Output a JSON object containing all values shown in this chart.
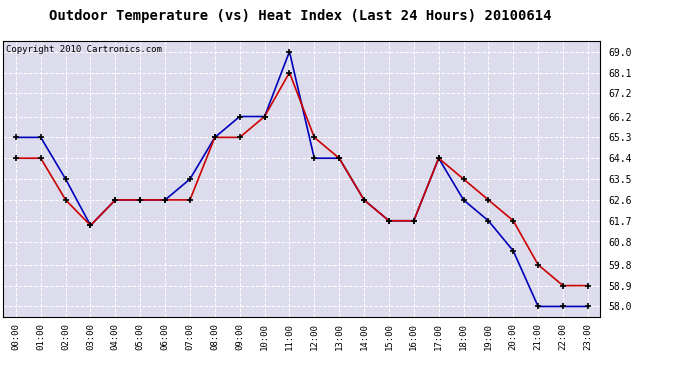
{
  "title": "Outdoor Temperature (vs) Heat Index (Last 24 Hours) 20100614",
  "copyright": "Copyright 2010 Cartronics.com",
  "x_labels": [
    "00:00",
    "01:00",
    "02:00",
    "03:00",
    "04:00",
    "05:00",
    "06:00",
    "07:00",
    "08:00",
    "09:00",
    "10:00",
    "11:00",
    "12:00",
    "13:00",
    "14:00",
    "15:00",
    "16:00",
    "17:00",
    "18:00",
    "19:00",
    "20:00",
    "21:00",
    "22:00",
    "23:00"
  ],
  "blue_data": [
    65.3,
    65.3,
    63.5,
    61.5,
    62.6,
    62.6,
    62.6,
    63.5,
    65.3,
    66.2,
    66.2,
    69.0,
    64.4,
    64.4,
    62.6,
    61.7,
    61.7,
    64.4,
    62.6,
    61.7,
    60.4,
    58.0,
    58.0,
    58.0
  ],
  "red_data": [
    64.4,
    64.4,
    62.6,
    61.5,
    62.6,
    62.6,
    62.6,
    62.6,
    65.3,
    65.3,
    66.2,
    68.1,
    65.3,
    64.4,
    62.6,
    61.7,
    61.7,
    64.4,
    63.5,
    62.6,
    61.7,
    59.8,
    58.9,
    58.9
  ],
  "ylim_min": 57.55,
  "ylim_max": 69.45,
  "yticks": [
    58.0,
    58.9,
    59.8,
    60.8,
    61.7,
    62.6,
    63.5,
    64.4,
    65.3,
    66.2,
    67.2,
    68.1,
    69.0
  ],
  "blue_color": "#0000bb",
  "red_color": "#cc0000",
  "bg_color": "#dcdcec",
  "title_fontsize": 10,
  "copyright_fontsize": 6.5
}
